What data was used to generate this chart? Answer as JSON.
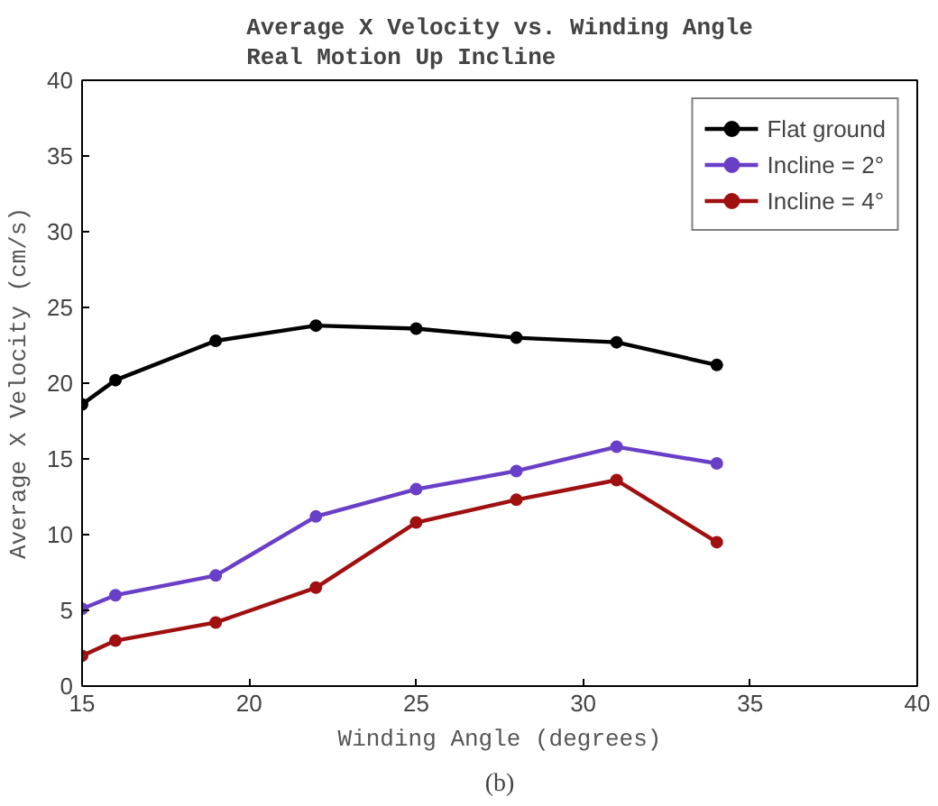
{
  "chart_data": {
    "type": "line",
    "title": "Average X Velocity vs. Winding Angle\nReal Motion Up Incline",
    "xlabel": "Winding Angle (degrees)",
    "ylabel": "Average X Velocity (cm/s)",
    "x": [
      15,
      16,
      19,
      22,
      25,
      28,
      31,
      34
    ],
    "series": [
      {
        "name": "Flat ground",
        "color": "#000000",
        "values": [
          18.6,
          20.2,
          22.8,
          23.8,
          23.6,
          23.0,
          22.7,
          21.2
        ]
      },
      {
        "name": "Incline = 2°",
        "color": "#6a3fc8",
        "values": [
          5.1,
          6.0,
          7.3,
          11.2,
          13.0,
          14.2,
          15.8,
          14.7
        ]
      },
      {
        "name": "Incline = 4°",
        "color": "#a01010",
        "values": [
          2.0,
          3.0,
          4.2,
          6.5,
          10.8,
          12.3,
          13.6,
          9.5
        ]
      }
    ],
    "xlim": [
      15,
      40
    ],
    "xticks": [
      15,
      20,
      25,
      30,
      35,
      40
    ],
    "ylim": [
      0,
      40
    ],
    "yticks": [
      0,
      5,
      10,
      15,
      20,
      25,
      30,
      35,
      40
    ],
    "grid": false,
    "legend": "top right",
    "marker": "circle",
    "line_style": "solid",
    "annotations": [
      "(b)"
    ]
  }
}
